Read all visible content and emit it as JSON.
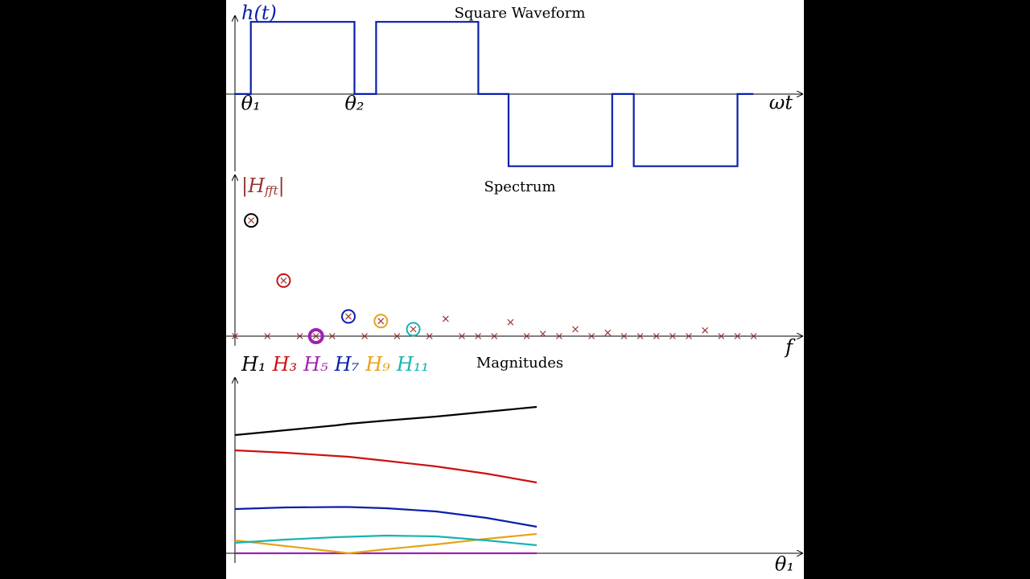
{
  "chart_data": [
    {
      "type": "step",
      "title": "Square Waveform",
      "ylabel": [
        "h(t)"
      ],
      "xlabel": "ωt",
      "color": "#0a1fa8",
      "xlim": [
        0,
        394
      ],
      "ylim": [
        -1.07,
        1.08
      ],
      "x": [
        0,
        11,
        11,
        83,
        83,
        98,
        98,
        169,
        169,
        190,
        190,
        262,
        262,
        277,
        277,
        349,
        349,
        360
      ],
      "values": [
        0,
        0,
        1,
        1,
        0,
        0,
        1,
        1,
        0,
        0,
        -1,
        -1,
        0,
        0,
        -1,
        -1,
        0,
        0
      ],
      "annotations": [
        {
          "text": "θ₁",
          "x": 11
        },
        {
          "text": "θ₂",
          "x": 83
        }
      ]
    },
    {
      "type": "scatter",
      "title": "Spectrum",
      "ylabel": [
        "|H",
        "fft",
        "|"
      ],
      "xlabel": "f",
      "color": "#993333",
      "xlim": [
        0,
        35
      ],
      "ylim": [
        0,
        1.39
      ],
      "x": [
        0,
        1,
        2,
        3,
        4,
        5,
        6,
        7,
        8,
        9,
        10,
        11,
        12,
        13,
        14,
        15,
        16,
        17,
        18,
        19,
        20,
        21,
        22,
        23,
        24,
        25,
        26,
        27,
        28,
        29,
        30,
        31,
        32
      ],
      "values": [
        0,
        1.0,
        0,
        0.48,
        0,
        0,
        0,
        0.17,
        0,
        0.13,
        0,
        0.06,
        0,
        0.15,
        0,
        0,
        0,
        0.12,
        0,
        0.02,
        0,
        0.06,
        0,
        0.03,
        0,
        0,
        0,
        0,
        0,
        0.05,
        0,
        0,
        0
      ],
      "highlight": {
        "indices": [
          1,
          3,
          5,
          7,
          9,
          11
        ],
        "colors": [
          "#000000",
          "#cc1111",
          "#a020b0",
          "#0a1fa8",
          "#e8a317",
          "#17b3b3"
        ]
      }
    },
    {
      "type": "line",
      "title": "Magnitudes",
      "xlabel": "θ₁",
      "xlim": [
        0,
        56.4
      ],
      "ylim": [
        0,
        2.18
      ],
      "x": [
        0,
        5,
        10,
        11.3,
        15,
        20,
        25,
        30
      ],
      "series": [
        {
          "name": "H₁",
          "color": "#000000",
          "values": [
            1.47,
            1.53,
            1.59,
            1.61,
            1.65,
            1.7,
            1.76,
            1.82
          ]
        },
        {
          "name": "H₃",
          "color": "#cc1111",
          "values": [
            1.28,
            1.25,
            1.21,
            1.2,
            1.15,
            1.08,
            0.99,
            0.88
          ]
        },
        {
          "name": "H₅",
          "color": "#a020b0",
          "values": [
            0,
            0,
            0,
            0,
            0,
            0,
            0,
            0
          ]
        },
        {
          "name": "H₇",
          "color": "#0a1fa8",
          "values": [
            0.55,
            0.57,
            0.575,
            0.575,
            0.56,
            0.52,
            0.44,
            0.33
          ]
        },
        {
          "name": "H₉",
          "color": "#e8a317",
          "values": [
            0.16,
            0.09,
            0.02,
            0,
            0.05,
            0.11,
            0.18,
            0.24
          ]
        },
        {
          "name": "H₁₁",
          "color": "#17b3b3",
          "values": [
            0.13,
            0.17,
            0.2,
            0.205,
            0.22,
            0.21,
            0.16,
            0.1
          ]
        }
      ]
    }
  ]
}
